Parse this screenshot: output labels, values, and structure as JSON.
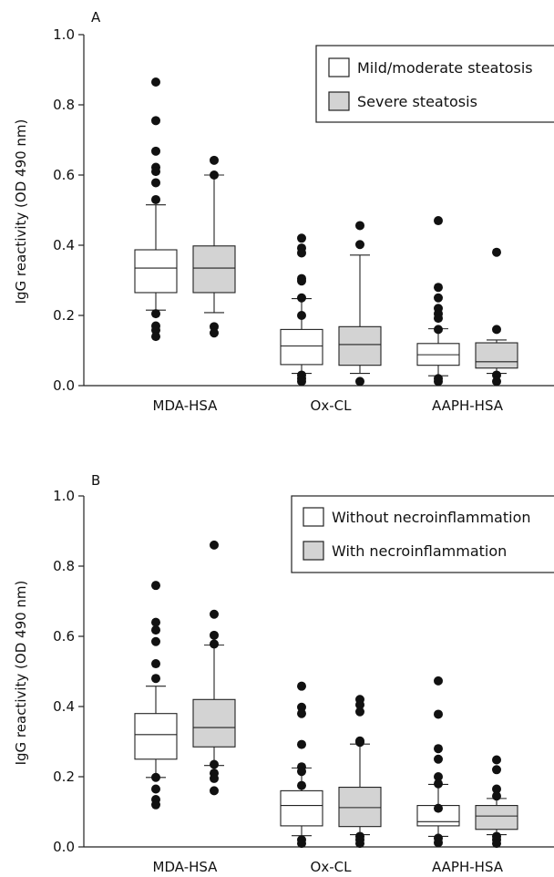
{
  "chart_data": [
    {
      "panel_label": "A",
      "type": "box",
      "ylabel": "IgG reactivity (OD 490 nm)",
      "ylim": [
        0,
        1.0
      ],
      "yticks": [
        "0.0",
        "0.2",
        "0.4",
        "0.6",
        "0.8",
        "1.0"
      ],
      "categories": [
        "MDA-HSA",
        "Ox-CL",
        "AAPH-HSA"
      ],
      "legend_position": "top-right",
      "series": [
        {
          "name": "Mild/moderate steatosis",
          "fill": "#ffffff",
          "boxes": [
            {
              "category": "MDA-HSA",
              "whisker_low": 0.215,
              "q1": 0.265,
              "median": 0.335,
              "q3": 0.387,
              "whisker_high": 0.515,
              "outliers": [
                0.865,
                0.755,
                0.668,
                0.622,
                0.61,
                0.578,
                0.53,
                0.205,
                0.17,
                0.158,
                0.14
              ]
            },
            {
              "category": "Ox-CL",
              "whisker_low": 0.035,
              "q1": 0.06,
              "median": 0.113,
              "q3": 0.16,
              "whisker_high": 0.248,
              "outliers": [
                0.42,
                0.392,
                0.378,
                0.305,
                0.298,
                0.25,
                0.2,
                0.03,
                0.02,
                0.012
              ]
            },
            {
              "category": "AAPH-HSA",
              "whisker_low": 0.028,
              "q1": 0.058,
              "median": 0.088,
              "q3": 0.12,
              "whisker_high": 0.162,
              "outliers": [
                0.47,
                0.28,
                0.25,
                0.22,
                0.205,
                0.192,
                0.16,
                0.02,
                0.012
              ]
            }
          ]
        },
        {
          "name": "Severe steatosis",
          "fill": "#d3d3d3",
          "boxes": [
            {
              "category": "MDA-HSA",
              "whisker_low": 0.208,
              "q1": 0.265,
              "median": 0.335,
              "q3": 0.398,
              "whisker_high": 0.6,
              "outliers": [
                0.642,
                0.6,
                0.168,
                0.15
              ]
            },
            {
              "category": "Ox-CL",
              "whisker_low": 0.035,
              "q1": 0.058,
              "median": 0.117,
              "q3": 0.168,
              "whisker_high": 0.372,
              "outliers": [
                0.456,
                0.402,
                0.012
              ]
            },
            {
              "category": "AAPH-HSA",
              "whisker_low": 0.035,
              "q1": 0.05,
              "median": 0.068,
              "q3": 0.122,
              "whisker_high": 0.13,
              "outliers": [
                0.38,
                0.16,
                0.03,
                0.012
              ]
            }
          ]
        }
      ]
    },
    {
      "panel_label": "B",
      "type": "box",
      "ylabel": "IgG reactivity (OD 490 nm)",
      "ylim": [
        0,
        1.0
      ],
      "yticks": [
        "0.0",
        "0.2",
        "0.4",
        "0.6",
        "0.8",
        "1.0"
      ],
      "categories": [
        "MDA-HSA",
        "Ox-CL",
        "AAPH-HSA"
      ],
      "legend_position": "top-right",
      "series": [
        {
          "name": "Without necroinflammation",
          "fill": "#ffffff",
          "boxes": [
            {
              "category": "MDA-HSA",
              "whisker_low": 0.198,
              "q1": 0.25,
              "median": 0.32,
              "q3": 0.38,
              "whisker_high": 0.458,
              "outliers": [
                0.745,
                0.64,
                0.618,
                0.585,
                0.522,
                0.48,
                0.198,
                0.165,
                0.135,
                0.12
              ]
            },
            {
              "category": "Ox-CL",
              "whisker_low": 0.032,
              "q1": 0.06,
              "median": 0.118,
              "q3": 0.16,
              "whisker_high": 0.225,
              "outliers": [
                0.458,
                0.398,
                0.38,
                0.292,
                0.228,
                0.215,
                0.175,
                0.02,
                0.01
              ]
            },
            {
              "category": "AAPH-HSA",
              "whisker_low": 0.03,
              "q1": 0.06,
              "median": 0.072,
              "q3": 0.118,
              "whisker_high": 0.178,
              "outliers": [
                0.473,
                0.378,
                0.28,
                0.25,
                0.2,
                0.18,
                0.11,
                0.025,
                0.012
              ]
            }
          ]
        },
        {
          "name": "With necroinflammation",
          "fill": "#d3d3d3",
          "boxes": [
            {
              "category": "MDA-HSA",
              "whisker_low": 0.232,
              "q1": 0.285,
              "median": 0.34,
              "q3": 0.42,
              "whisker_high": 0.575,
              "outliers": [
                0.86,
                0.663,
                0.603,
                0.578,
                0.235,
                0.21,
                0.195,
                0.16
              ]
            },
            {
              "category": "Ox-CL",
              "whisker_low": 0.035,
              "q1": 0.058,
              "median": 0.112,
              "q3": 0.17,
              "whisker_high": 0.293,
              "outliers": [
                0.42,
                0.405,
                0.385,
                0.302,
                0.298,
                0.03,
                0.02,
                0.01
              ]
            },
            {
              "category": "AAPH-HSA",
              "whisker_low": 0.035,
              "q1": 0.05,
              "median": 0.088,
              "q3": 0.118,
              "whisker_high": 0.138,
              "outliers": [
                0.248,
                0.22,
                0.165,
                0.145,
                0.03,
                0.02,
                0.01
              ]
            }
          ]
        }
      ]
    }
  ]
}
